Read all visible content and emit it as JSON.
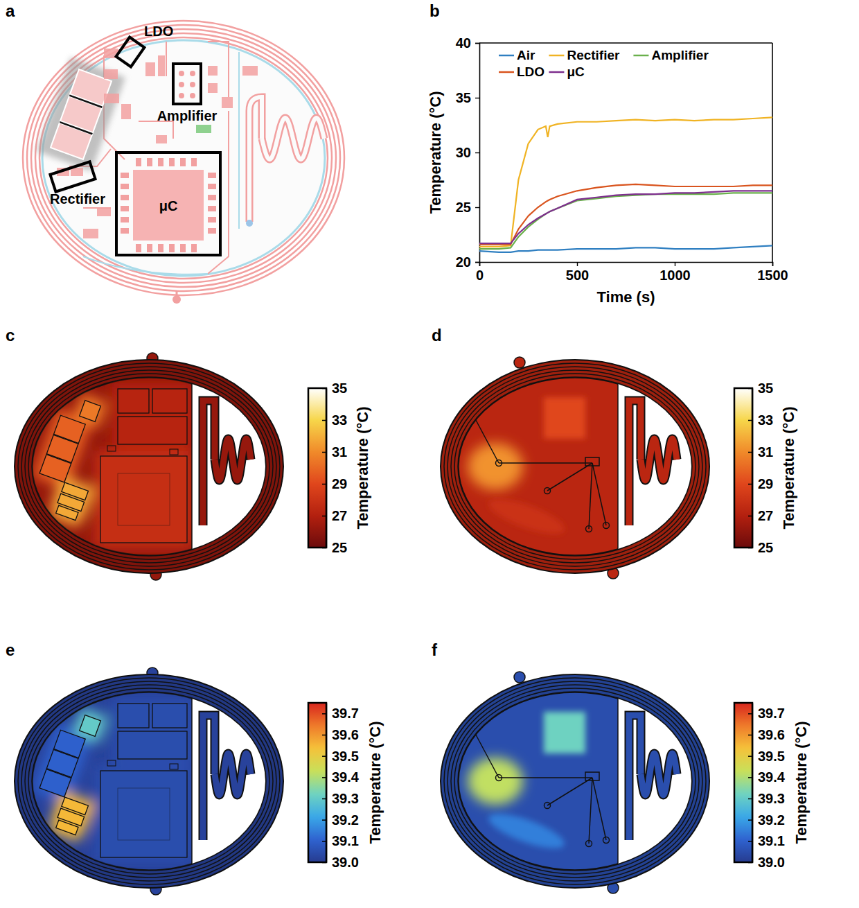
{
  "diagram": {
    "panel": "a",
    "labels": [
      "LDO",
      "Amplifier",
      "Rectifier",
      "μC"
    ]
  },
  "chart_data": [
    {
      "panel": "b",
      "type": "line",
      "x": [
        0,
        100,
        160,
        200,
        250,
        300,
        340,
        350,
        360,
        400,
        500,
        600,
        700,
        800,
        900,
        1000,
        1100,
        1200,
        1300,
        1400,
        1500
      ],
      "xlim": [
        0,
        1500
      ],
      "xticks": [
        0,
        500,
        1000,
        1500
      ],
      "ylim": [
        20,
        40
      ],
      "yticks": [
        20,
        25,
        30,
        35,
        40
      ],
      "xlabel": "Time (s)",
      "ylabel": "Temperature (°C)",
      "legend": "top",
      "series": [
        {
          "name": "Air",
          "color": "#2f7fc1",
          "values": [
            21.0,
            20.9,
            20.9,
            21.0,
            21.0,
            21.1,
            21.1,
            21.1,
            21.1,
            21.1,
            21.2,
            21.2,
            21.2,
            21.3,
            21.3,
            21.2,
            21.2,
            21.2,
            21.3,
            21.4,
            21.5
          ]
        },
        {
          "name": "Rectifier",
          "color": "#f0b323",
          "values": [
            21.4,
            21.4,
            21.5,
            27.5,
            30.8,
            32.1,
            32.4,
            31.4,
            32.4,
            32.6,
            32.8,
            32.8,
            32.9,
            33.0,
            32.9,
            33.0,
            32.9,
            33.0,
            33.0,
            33.1,
            33.2
          ]
        },
        {
          "name": "Amplifier",
          "color": "#6ab04c",
          "values": [
            21.2,
            21.2,
            21.3,
            22.3,
            23.2,
            23.9,
            24.4,
            24.5,
            24.6,
            24.9,
            25.6,
            25.8,
            26.0,
            26.1,
            26.2,
            26.2,
            26.2,
            26.2,
            26.3,
            26.3,
            26.3
          ]
        },
        {
          "name": "LDO",
          "color": "#d9541e",
          "values": [
            21.6,
            21.6,
            21.6,
            23.0,
            24.2,
            25.0,
            25.5,
            25.6,
            25.7,
            26.0,
            26.5,
            26.8,
            27.0,
            27.1,
            27.0,
            26.9,
            26.9,
            26.9,
            26.9,
            27.0,
            27.0
          ]
        },
        {
          "name": "μC",
          "color": "#7e2f8e",
          "values": [
            21.7,
            21.7,
            21.7,
            22.6,
            23.4,
            24.0,
            24.4,
            24.5,
            24.6,
            24.9,
            25.7,
            25.9,
            26.1,
            26.2,
            26.2,
            26.3,
            26.3,
            26.4,
            26.5,
            26.5,
            26.5
          ]
        }
      ]
    },
    {
      "panel": "c",
      "type": "thermal_map",
      "color": "hot",
      "values": [
        26.2,
        27.8,
        27.2,
        29.8,
        31.8,
        30.5
      ],
      "colorbar_range": [
        25,
        35
      ],
      "colorbar_ticks": [
        25,
        27,
        29,
        31,
        33,
        35
      ],
      "colorbar_title": "Temperature (°C)"
    },
    {
      "panel": "d",
      "type": "thermal_map",
      "color": "hot",
      "values": [
        27.3,
        31.2,
        29.0,
        28.0
      ],
      "colorbar_range": [
        25,
        35
      ],
      "colorbar_ticks": [
        25,
        27,
        29,
        31,
        33,
        35
      ],
      "colorbar_title": "Temperature (°C)"
    },
    {
      "panel": "e",
      "type": "thermal_map",
      "color": "jet",
      "values": [
        39.02,
        39.05,
        39.05,
        39.1,
        39.55,
        39.3
      ],
      "colorbar_range": [
        39.0,
        39.75
      ],
      "colorbar_ticks": [
        {
          "value": 39.0,
          "label": "39.0"
        },
        39.1,
        39.2,
        39.3,
        39.4,
        39.5,
        39.6,
        39.7
      ],
      "colorbar_title": "Temperature (°C)"
    },
    {
      "panel": "f",
      "type": "thermal_map",
      "color": "jet",
      "values": [
        39.05,
        39.42,
        39.32,
        39.15
      ],
      "colorbar_range": [
        39.0,
        39.75
      ],
      "colorbar_ticks": [
        {
          "value": 39.0,
          "label": "39.0"
        },
        39.1,
        39.2,
        39.3,
        39.4,
        39.5,
        39.6,
        39.7
      ],
      "colorbar_title": "Temperature (°C)"
    }
  ]
}
